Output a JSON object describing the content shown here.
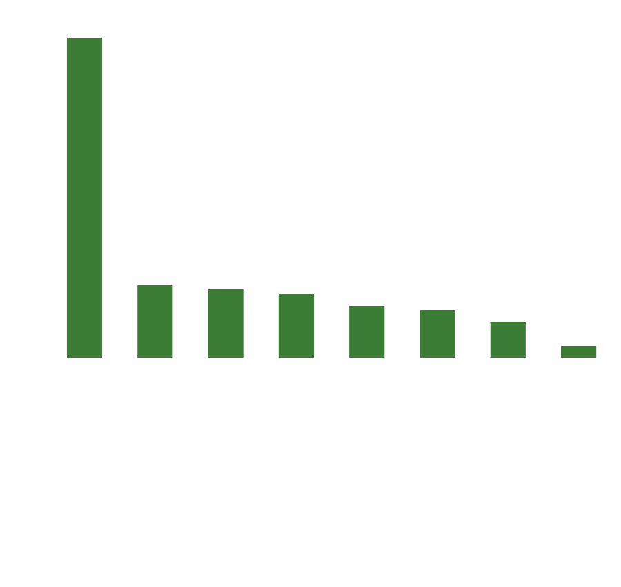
{
  "chart_data": {
    "type": "bar",
    "categories": [
      null,
      null,
      null,
      null,
      null,
      null,
      null,
      null
    ],
    "values": [
      463,
      105,
      99,
      93,
      75,
      69,
      52,
      17
    ],
    "color": "#3b7d34",
    "ylim": [
      0,
      463
    ]
  }
}
